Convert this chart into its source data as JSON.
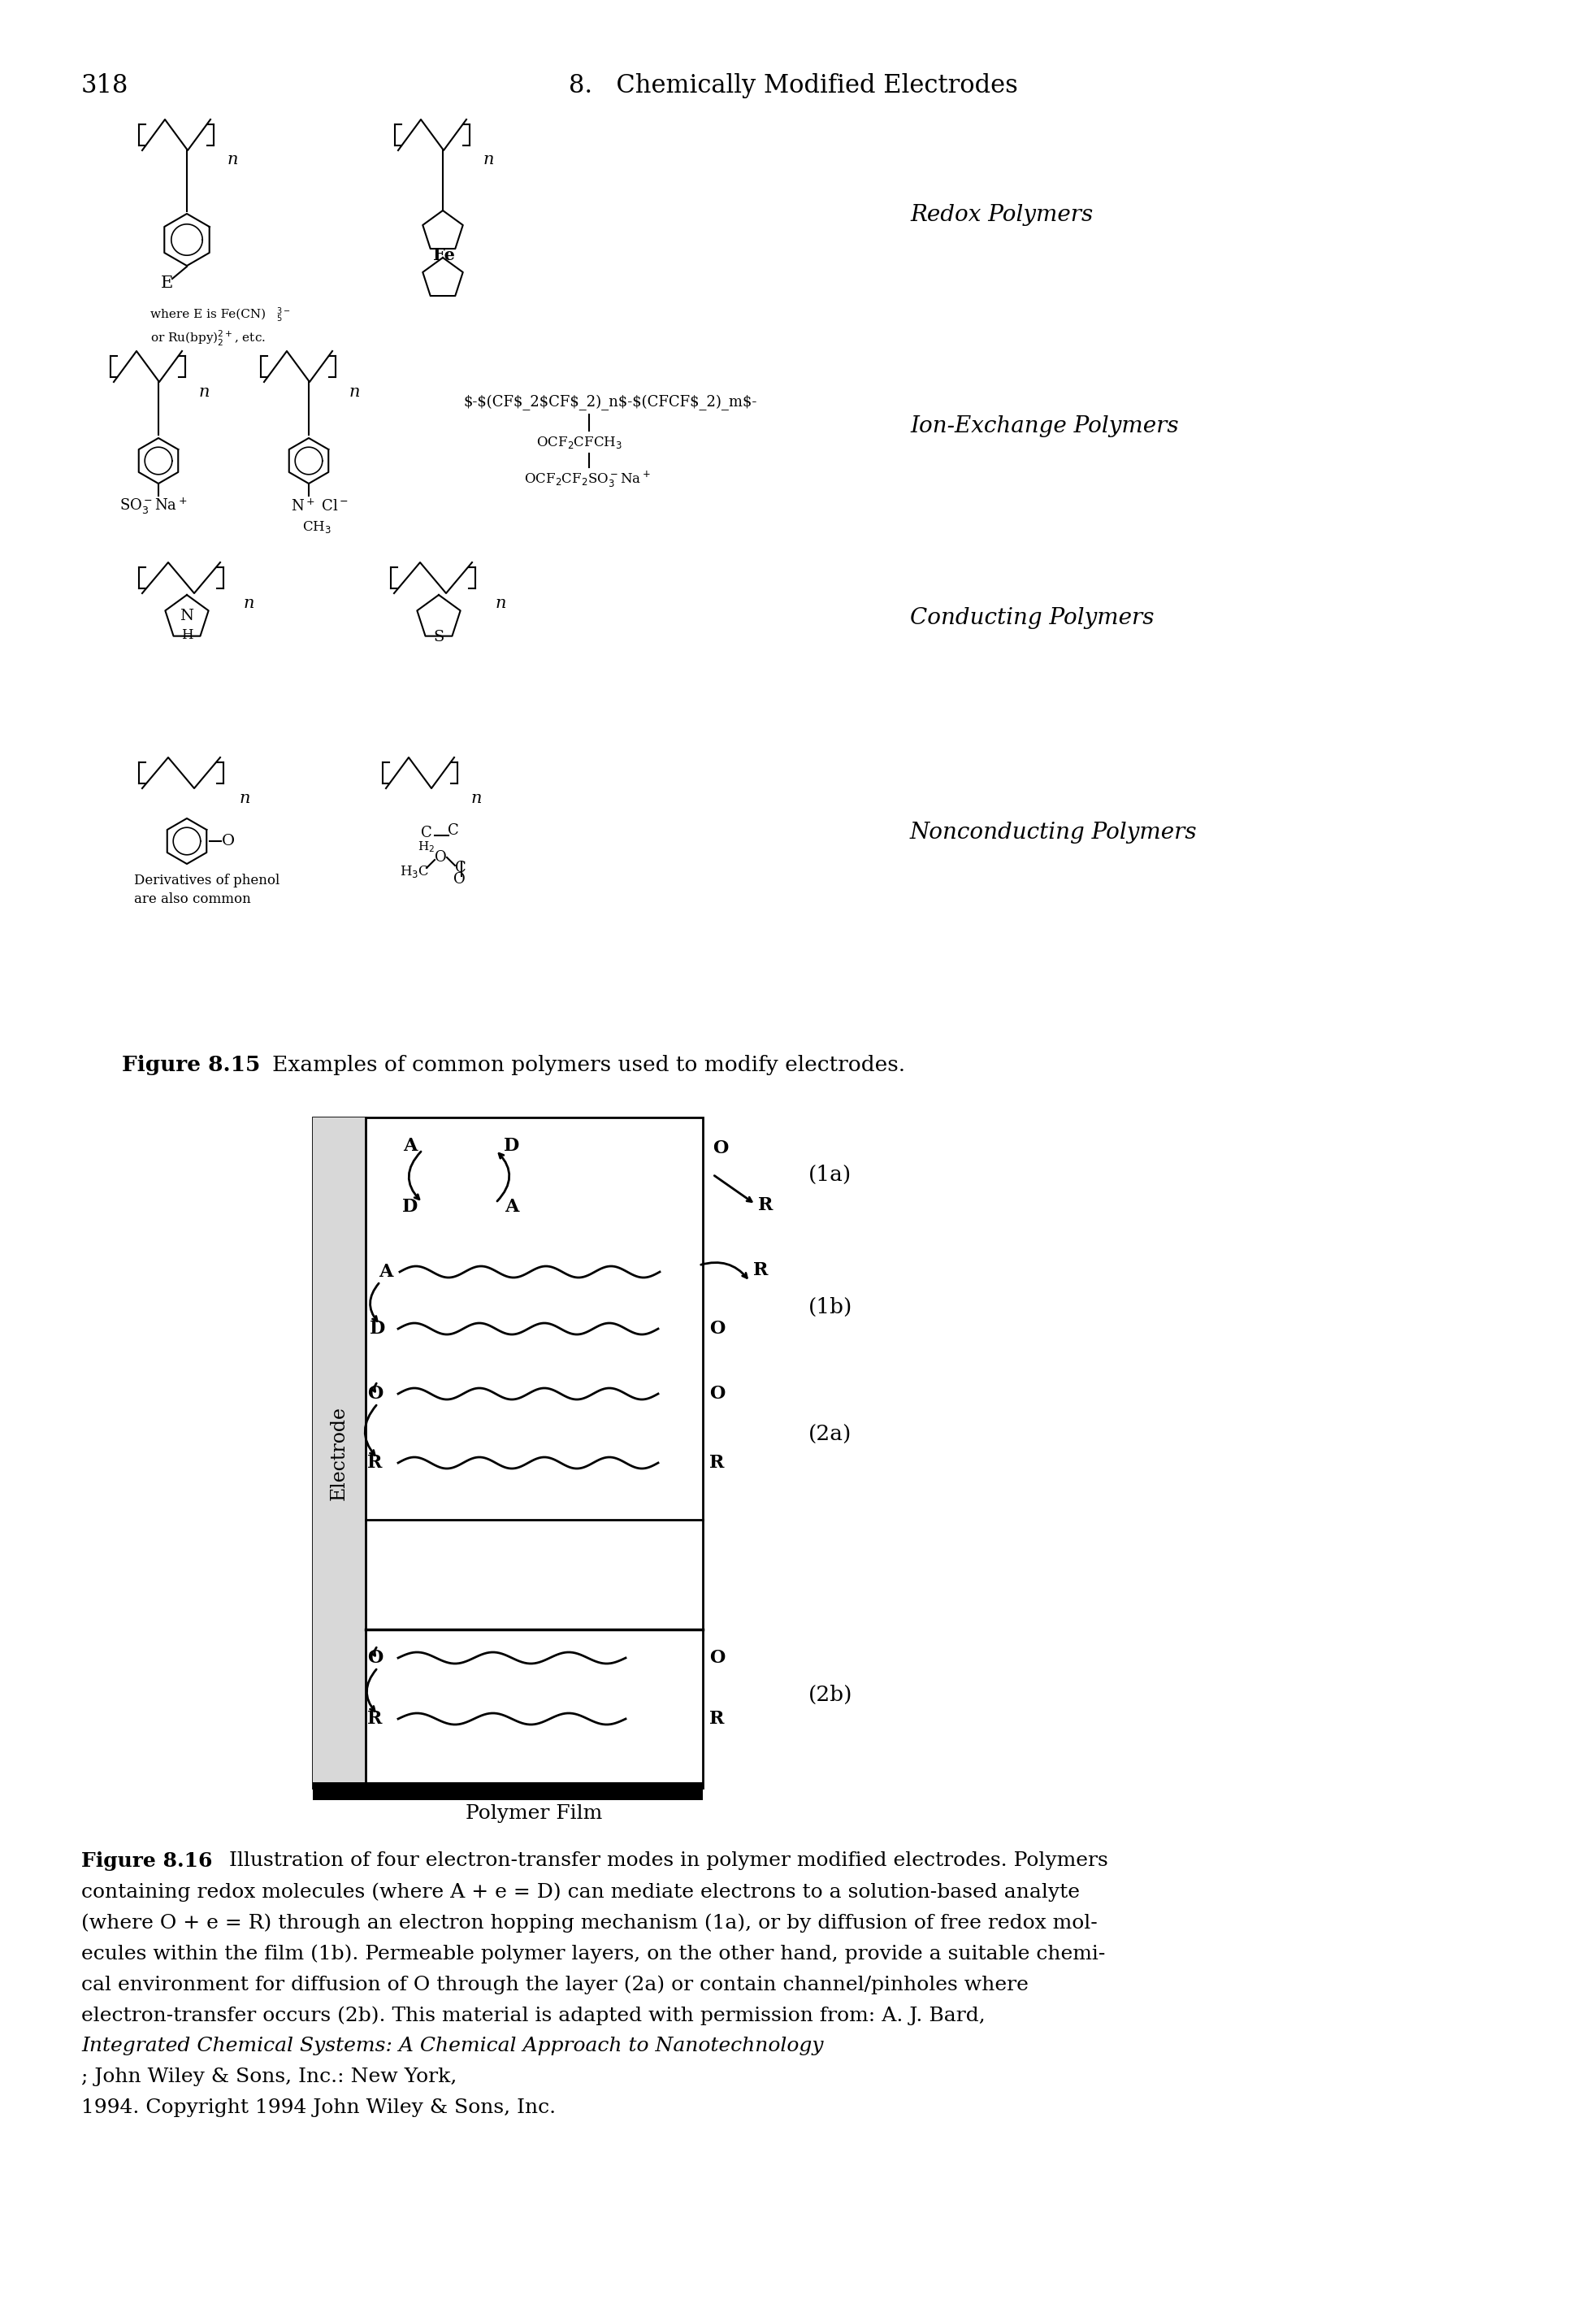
{
  "page_number": "318",
  "header_text": "8.   Chemically Modified Electrodes",
  "fig815_label": "Figure 8.15",
  "fig815_caption": "   Examples of common polymers used to modify electrodes.",
  "fig816_label": "Figure 8.16",
  "fig816_caption_bold": "Figure 8.16",
  "fig816_line1": "   Illustration of four electron-transfer modes in polymer modified electrodes. Polymers",
  "fig816_line2": "containing redox molecules (where A + e = D) can mediate electrons to a solution-based analyte",
  "fig816_line3": "(where O + e = R) through an electron hopping mechanism (1a), or by diffusion of free redox mol-",
  "fig816_line4": "ecules within the film (1b). Permeable polymer layers, on the other hand, provide a suitable chemi-",
  "fig816_line5": "cal environment for diffusion of O through the layer (2a) or contain channel/pinholes where",
  "fig816_line6": "electron-transfer occurs (2b). This material is adapted with permission from: A. J. Bard, ",
  "fig816_line7": "Integrated Chemical Systems: A Chemical Approach to Nanotechnology",
  "fig816_line8": "; John Wiley & Sons, Inc.: New York,",
  "fig816_line9": "1994. Copyright 1994 John Wiley & Sons, Inc.",
  "label_redox": "Redox Polymers",
  "label_ion": "Ion-Exchange Polymers",
  "label_conducting": "Conducting Polymers",
  "label_nonconducting": "Nonconducting Polymers",
  "electrode_label": "Electrode",
  "polymer_film_label": "Polymer Film",
  "label_1a": "(1a)",
  "label_1b": "(1b)",
  "label_2a": "(2a)",
  "label_2b": "(2b)",
  "background_color": "#ffffff",
  "text_color": "#000000"
}
